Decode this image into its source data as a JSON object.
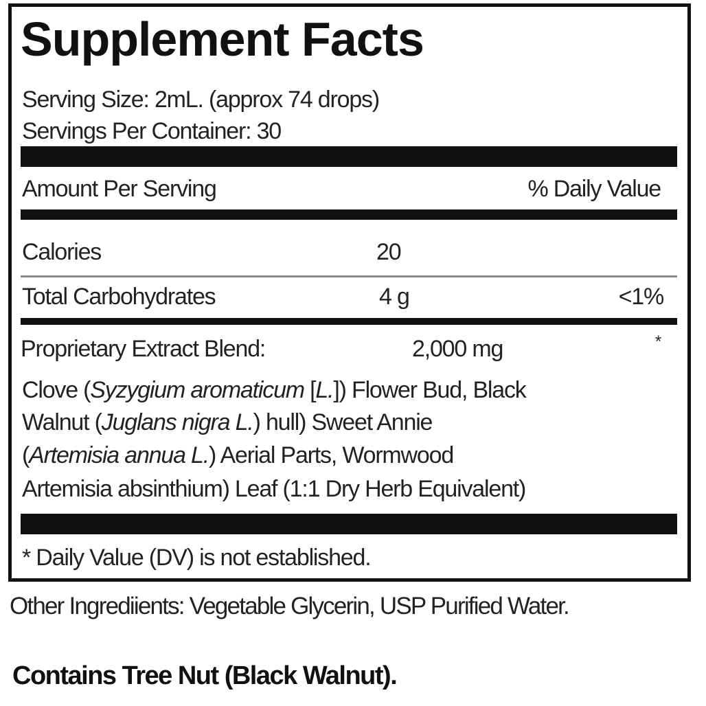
{
  "title": "Supplement Facts",
  "serving_size": "Serving Size: 2mL. (approx 74 drops)",
  "servings_per_container": "Servings Per Container: 30",
  "header": {
    "amount_label": "Amount Per Serving",
    "dv_label": "% Daily Value"
  },
  "rows": [
    {
      "name": "Calories",
      "amount": "20",
      "dv": ""
    },
    {
      "name": "Total Carbohydrates",
      "amount": "4 g",
      "dv": "<1%"
    }
  ],
  "blend": {
    "name": "Proprietary Extract Blend:",
    "amount": "2,000 mg",
    "dv": "*"
  },
  "ingredients": {
    "l1a": "Clove (",
    "l1i": "Syzygium aromaticum",
    "l1b": " [",
    "l1i2": "L.",
    "l1c": "]) Flower Bud,  Black",
    "l2a": "Walnut (",
    "l2i": "Juglans nigra L.",
    "l2b": ") hull)  Sweet Annie",
    "l3a": "(",
    "l3i": "Artemisia annua L.",
    "l3b": ") Aerial Parts, Wormwood",
    "l4": "Artemisia absinthium) Leaf (1:1 Dry Herb Equivalent)"
  },
  "footnote": "* Daily Value (DV) is not established.",
  "other_ingredients": "Other Ingrediients: Vegetable Glycerin, USP Purified Water.",
  "allergen": "Contains Tree Nut (Black Walnut)."
}
